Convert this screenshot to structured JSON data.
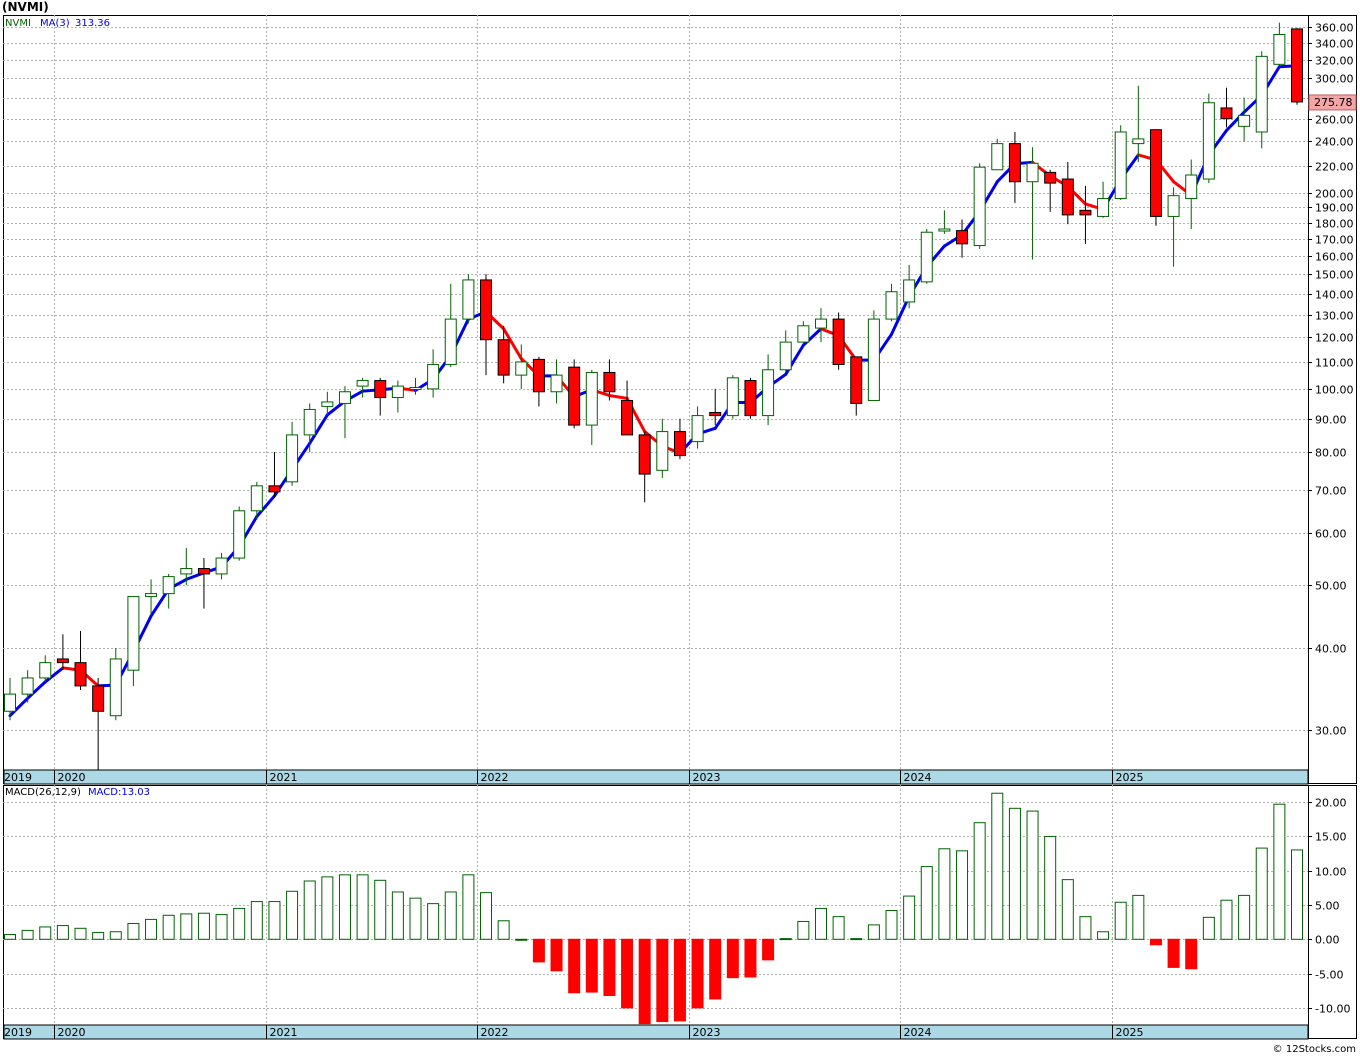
{
  "title": "(NVMI)",
  "credit": "© 12Stocks.com",
  "colors": {
    "up": "#006400",
    "down": "#ff0000",
    "ma_up": "#0000ee",
    "ma_down": "#ff0000",
    "grid": "#b0b0b0",
    "axis_band": "#add8e6",
    "price_tag_bg": "#f4a6a6"
  },
  "chart_data": [
    {
      "type": "candlestick",
      "name": "price",
      "interval": "monthly",
      "scale": "log",
      "ylim": [
        26,
        375
      ],
      "legend": {
        "symbol": "NVMI",
        "ma_label": "MA(3)",
        "ma_value": "313.36"
      },
      "last_price_label": "275.78",
      "ytick_labels": [
        "360.00",
        "340.00",
        "320.00",
        "300.00",
        "280.00",
        "260.00",
        "240.00",
        "220.00",
        "200.00",
        "190.00",
        "180.00",
        "170.00",
        "160.00",
        "150.00",
        "140.00",
        "130.00",
        "120.00",
        "110.00",
        "100.00",
        "90.00",
        "80.00",
        "70.00",
        "60.00",
        "50.00",
        "40.00",
        "30.00"
      ],
      "xtick_labels": [
        {
          "label": "2019",
          "index": 0
        },
        {
          "label": "2020",
          "index": 3
        },
        {
          "label": "2021",
          "index": 15
        },
        {
          "label": "2022",
          "index": 27
        },
        {
          "label": "2023",
          "index": 39
        },
        {
          "label": "2024",
          "index": 51
        },
        {
          "label": "2025",
          "index": 63
        }
      ],
      "candles": [
        {
          "o": 32,
          "h": 36,
          "l": 31,
          "c": 34,
          "ma": 31.5
        },
        {
          "o": 34,
          "h": 37,
          "l": 33,
          "c": 36,
          "ma": 33.5
        },
        {
          "o": 36,
          "h": 39,
          "l": 35.5,
          "c": 38,
          "ma": 35.5
        },
        {
          "o": 38.5,
          "h": 42,
          "l": 37,
          "c": 38,
          "ma": 37.3
        },
        {
          "o": 38,
          "h": 42.5,
          "l": 34.5,
          "c": 35,
          "ma": 37.0
        },
        {
          "o": 35,
          "h": 36,
          "l": 25,
          "c": 32,
          "ma": 35.0
        },
        {
          "o": 31.5,
          "h": 40,
          "l": 31,
          "c": 38.5,
          "ma": 35.1
        },
        {
          "o": 37,
          "h": 48,
          "l": 35,
          "c": 48,
          "ma": 39.5
        },
        {
          "o": 48,
          "h": 51,
          "l": 45,
          "c": 48.5,
          "ma": 44.8
        },
        {
          "o": 48.5,
          "h": 52,
          "l": 46,
          "c": 51.5,
          "ma": 49.3
        },
        {
          "o": 52,
          "h": 57,
          "l": 50,
          "c": 53,
          "ma": 51.0
        },
        {
          "o": 53,
          "h": 55,
          "l": 46,
          "c": 52,
          "ma": 52.2
        },
        {
          "o": 52,
          "h": 56,
          "l": 51,
          "c": 55,
          "ma": 53.3
        },
        {
          "o": 55,
          "h": 66,
          "l": 54.5,
          "c": 65,
          "ma": 57.3
        },
        {
          "o": 65,
          "h": 72,
          "l": 63,
          "c": 71,
          "ma": 63.7
        },
        {
          "o": 71,
          "h": 80,
          "l": 68,
          "c": 69.5,
          "ma": 68.5
        },
        {
          "o": 72,
          "h": 89,
          "l": 71,
          "c": 85,
          "ma": 75.2
        },
        {
          "o": 85,
          "h": 95,
          "l": 80,
          "c": 93,
          "ma": 82.5
        },
        {
          "o": 94,
          "h": 99,
          "l": 91,
          "c": 95.5,
          "ma": 91.2
        },
        {
          "o": 95,
          "h": 101,
          "l": 84,
          "c": 99,
          "ma": 95.8
        },
        {
          "o": 101,
          "h": 104,
          "l": 97,
          "c": 103,
          "ma": 99.2
        },
        {
          "o": 103,
          "h": 104,
          "l": 91,
          "c": 97,
          "ma": 99.7
        },
        {
          "o": 97,
          "h": 103,
          "l": 92,
          "c": 101,
          "ma": 100.3
        },
        {
          "o": 100,
          "h": 104,
          "l": 98,
          "c": 100.5,
          "ma": 99.5
        },
        {
          "o": 100,
          "h": 115,
          "l": 97,
          "c": 109,
          "ma": 103.5
        },
        {
          "o": 109,
          "h": 145,
          "l": 108,
          "c": 128,
          "ma": 112.5
        },
        {
          "o": 128,
          "h": 150,
          "l": 126,
          "c": 147,
          "ma": 128.0
        },
        {
          "o": 147,
          "h": 150,
          "l": 105,
          "c": 119,
          "ma": 131.3
        },
        {
          "o": 119,
          "h": 125,
          "l": 102,
          "c": 105,
          "ma": 123.7
        },
        {
          "o": 105,
          "h": 117,
          "l": 100,
          "c": 110,
          "ma": 111.3
        },
        {
          "o": 111,
          "h": 112,
          "l": 94,
          "c": 99,
          "ma": 104.7
        },
        {
          "o": 99,
          "h": 111,
          "l": 95,
          "c": 105,
          "ma": 104.7
        },
        {
          "o": 108,
          "h": 111,
          "l": 87,
          "c": 88,
          "ma": 97.3
        },
        {
          "o": 88,
          "h": 107,
          "l": 82,
          "c": 106,
          "ma": 99.7
        },
        {
          "o": 106,
          "h": 111,
          "l": 96,
          "c": 99,
          "ma": 97.7
        },
        {
          "o": 96,
          "h": 103,
          "l": 85,
          "c": 85,
          "ma": 96.7
        },
        {
          "o": 85,
          "h": 86,
          "l": 67,
          "c": 74,
          "ma": 86.0
        },
        {
          "o": 75,
          "h": 90,
          "l": 73,
          "c": 86,
          "ma": 81.7
        },
        {
          "o": 86,
          "h": 90,
          "l": 78,
          "c": 79,
          "ma": 79.7
        },
        {
          "o": 83,
          "h": 94,
          "l": 81,
          "c": 91,
          "ma": 85.3
        },
        {
          "o": 92,
          "h": 100,
          "l": 88,
          "c": 91,
          "ma": 87.0
        },
        {
          "o": 91,
          "h": 105,
          "l": 90,
          "c": 104,
          "ma": 95.3
        },
        {
          "o": 103,
          "h": 104,
          "l": 90,
          "c": 91,
          "ma": 95.3
        },
        {
          "o": 91,
          "h": 113,
          "l": 88,
          "c": 107,
          "ma": 100.7
        },
        {
          "o": 107,
          "h": 123,
          "l": 106,
          "c": 118,
          "ma": 105.3
        },
        {
          "o": 118,
          "h": 127,
          "l": 117,
          "c": 125,
          "ma": 116.7
        },
        {
          "o": 124,
          "h": 133,
          "l": 118,
          "c": 128,
          "ma": 123.7
        },
        {
          "o": 128,
          "h": 131,
          "l": 107,
          "c": 109,
          "ma": 120.7
        },
        {
          "o": 112,
          "h": 112,
          "l": 91,
          "c": 95,
          "ma": 110.7
        },
        {
          "o": 96,
          "h": 132,
          "l": 96,
          "c": 128,
          "ma": 110.7
        },
        {
          "o": 128,
          "h": 145,
          "l": 127,
          "c": 141,
          "ma": 121.3
        },
        {
          "o": 136,
          "h": 155,
          "l": 133,
          "c": 147,
          "ma": 138.7
        },
        {
          "o": 146,
          "h": 176,
          "l": 145,
          "c": 174,
          "ma": 154.0
        },
        {
          "o": 175,
          "h": 188,
          "l": 173,
          "c": 176,
          "ma": 165.7
        },
        {
          "o": 175,
          "h": 182,
          "l": 159,
          "c": 167,
          "ma": 172.3
        },
        {
          "o": 166,
          "h": 222,
          "l": 164,
          "c": 219,
          "ma": 187.3
        },
        {
          "o": 217,
          "h": 242,
          "l": 217,
          "c": 238,
          "ma": 208.0
        },
        {
          "o": 238,
          "h": 248,
          "l": 193,
          "c": 208,
          "ma": 221.7
        },
        {
          "o": 208,
          "h": 235,
          "l": 158,
          "c": 222,
          "ma": 222.7
        },
        {
          "o": 215,
          "h": 217,
          "l": 187,
          "c": 207,
          "ma": 212.3
        },
        {
          "o": 210,
          "h": 223,
          "l": 179,
          "c": 185,
          "ma": 204.7
        },
        {
          "o": 188,
          "h": 205,
          "l": 167,
          "c": 185,
          "ma": 192.3
        },
        {
          "o": 184,
          "h": 208,
          "l": 183,
          "c": 196,
          "ma": 188.7
        },
        {
          "o": 196,
          "h": 254,
          "l": 195,
          "c": 248,
          "ma": 209.7
        },
        {
          "o": 238,
          "h": 292,
          "l": 223,
          "c": 242,
          "ma": 228.7
        },
        {
          "o": 250,
          "h": 250,
          "l": 178,
          "c": 184,
          "ma": 224.7
        },
        {
          "o": 184,
          "h": 204,
          "l": 154,
          "c": 198,
          "ma": 208.0
        },
        {
          "o": 196,
          "h": 225,
          "l": 176,
          "c": 213,
          "ma": 198.3
        },
        {
          "o": 210,
          "h": 284,
          "l": 207,
          "c": 275,
          "ma": 228.7
        },
        {
          "o": 270,
          "h": 290,
          "l": 252,
          "c": 260,
          "ma": 249.3
        },
        {
          "o": 253,
          "h": 280,
          "l": 240,
          "c": 263,
          "ma": 266.0
        },
        {
          "o": 248,
          "h": 330,
          "l": 234,
          "c": 324,
          "ma": 282.3
        },
        {
          "o": 315,
          "h": 365,
          "l": 313,
          "c": 350,
          "ma": 312.3
        },
        {
          "o": 357,
          "h": 358,
          "l": 273,
          "c": 275.78,
          "ma": 313.36
        }
      ]
    },
    {
      "type": "bar",
      "name": "macd-histogram",
      "legend": {
        "label": "MACD(26,12,9)",
        "value_label": "MACD:13.03"
      },
      "ylim": [
        -12.5,
        22.5
      ],
      "yticks": [
        20,
        15,
        10,
        5,
        0,
        -5,
        -10
      ],
      "ytick_labels": [
        "20.00",
        "15.00",
        "10.00",
        "5.00",
        "0.00",
        "-5.00",
        "-10.00"
      ],
      "values": [
        0.7,
        1.3,
        1.8,
        2,
        1.6,
        1,
        1.1,
        2.3,
        2.9,
        3.5,
        3.7,
        3.8,
        3.6,
        4.5,
        5.5,
        5.5,
        7,
        8.5,
        9.1,
        9.4,
        9.4,
        8.6,
        6.9,
        6,
        5.2,
        6.9,
        9.4,
        6.8,
        2.7,
        0,
        -3.3,
        -4.6,
        -7.8,
        -7.7,
        -8.2,
        -10,
        -12.3,
        -12,
        -11.9,
        -10,
        -8.7,
        -5.6,
        -5.5,
        -3,
        0.1,
        2.6,
        4.5,
        3.3,
        0.1,
        2.1,
        4.2,
        6.3,
        10.6,
        13.2,
        12.9,
        17,
        21.3,
        19.1,
        18.7,
        15,
        8.7,
        3.3,
        1.1,
        5.4,
        6.4,
        -0.8,
        -4.1,
        -4.3,
        3.2,
        5.7,
        6.4,
        13.3,
        19.7,
        13.03
      ]
    }
  ]
}
